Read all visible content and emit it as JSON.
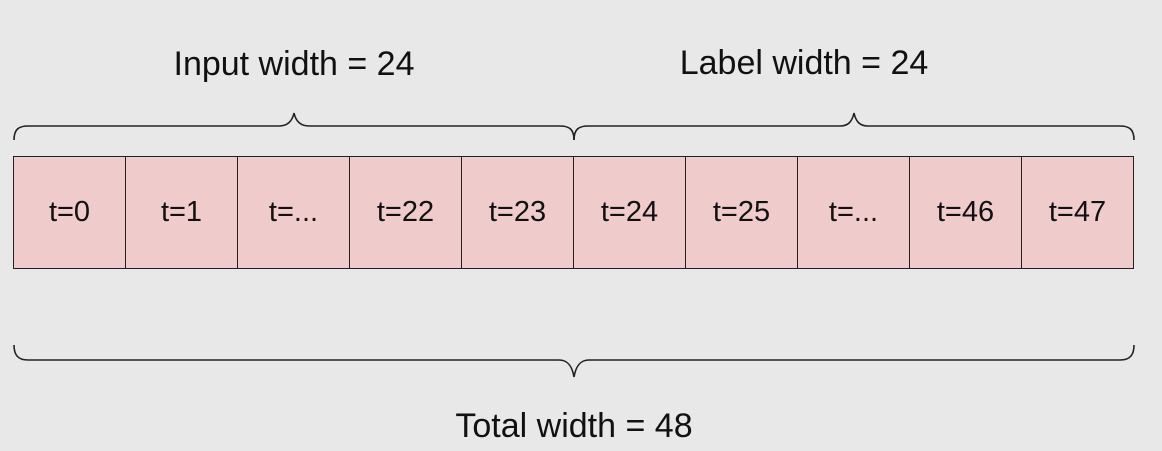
{
  "input_width_label": "Input width = 24",
  "label_width_label": "Label width = 24",
  "total_width_label": "Total width = 48",
  "cells": [
    "t=0",
    "t=1",
    "t=...",
    "t=22",
    "t=23",
    "t=24",
    "t=25",
    "t=...",
    "t=46",
    "t=47"
  ],
  "colors": {
    "background": "#e8e8e8",
    "cell_fill": "#efcbcb",
    "stroke": "#222222"
  }
}
